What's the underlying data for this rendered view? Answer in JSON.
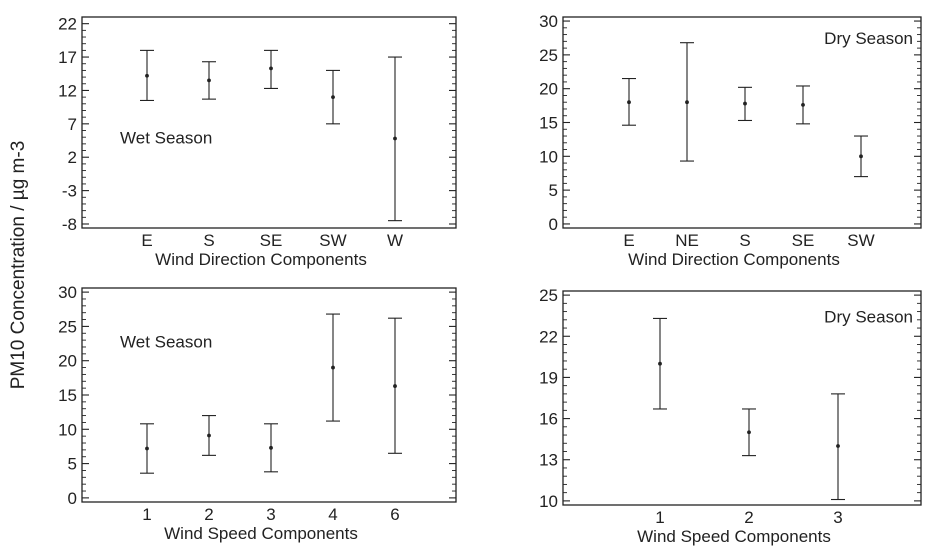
{
  "figure": {
    "ylabel": "PM10 Concentration / µg m-3"
  },
  "chart_data": [
    {
      "type": "errorbar",
      "title": "Wet Season",
      "xlabel": "Wind Direction Components",
      "categories": [
        "E",
        "S",
        "SE",
        "SW",
        "W"
      ],
      "mean": [
        14.2,
        13.5,
        15.3,
        11.0,
        4.8
      ],
      "lower": [
        10.5,
        10.7,
        12.3,
        7.0,
        -7.5
      ],
      "upper": [
        18.0,
        16.3,
        18.0,
        15.0,
        17.0
      ],
      "yticks": [
        -8,
        -3,
        2,
        7,
        12,
        17,
        22
      ],
      "ylim": [
        -8.6,
        23
      ],
      "grid": false
    },
    {
      "type": "errorbar",
      "title": "Dry Season",
      "xlabel": "Wind Direction Components",
      "categories": [
        "E",
        "NE",
        "S",
        "SE",
        "SW"
      ],
      "mean": [
        18.0,
        18.0,
        17.8,
        17.6,
        10.0
      ],
      "lower": [
        14.6,
        9.3,
        15.3,
        14.8,
        7.0
      ],
      "upper": [
        21.5,
        26.8,
        20.2,
        20.4,
        13.0
      ],
      "yticks": [
        0,
        5,
        10,
        15,
        20,
        25,
        30
      ],
      "ylim": [
        -0.6,
        30.6
      ],
      "grid": false
    },
    {
      "type": "errorbar",
      "title": "Wet Season",
      "xlabel": "Wind Speed Components",
      "categories": [
        "1",
        "2",
        "3",
        "4",
        "6"
      ],
      "mean": [
        7.2,
        9.1,
        7.3,
        19.0,
        16.3
      ],
      "lower": [
        3.6,
        6.2,
        3.8,
        11.2,
        6.5
      ],
      "upper": [
        10.8,
        12.0,
        10.8,
        26.8,
        26.2
      ],
      "yticks": [
        0,
        5,
        10,
        15,
        20,
        25,
        30
      ],
      "ylim": [
        -0.6,
        30.6
      ],
      "grid": false
    },
    {
      "type": "errorbar",
      "title": "Dry Season",
      "xlabel": "Wind Speed Components",
      "categories": [
        "1",
        "2",
        "3"
      ],
      "mean": [
        20.0,
        15.0,
        14.0
      ],
      "lower": [
        16.7,
        13.3,
        10.1
      ],
      "upper": [
        23.3,
        16.7,
        17.8
      ],
      "yticks": [
        10,
        13,
        16,
        19,
        22,
        25
      ],
      "ylim": [
        9.7,
        25.3
      ],
      "grid": false
    }
  ]
}
